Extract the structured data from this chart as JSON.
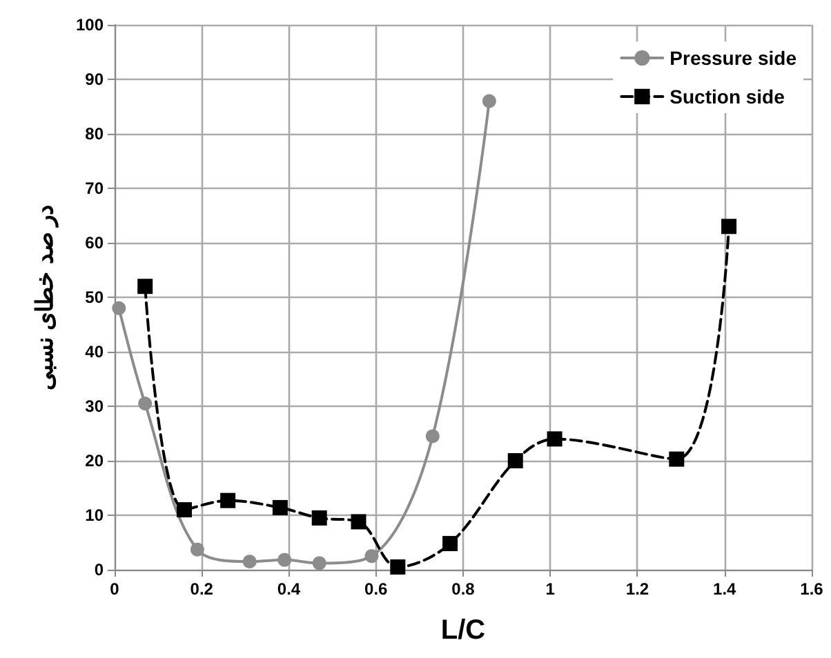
{
  "chart_data": {
    "type": "line",
    "xlabel": "L/C",
    "ylabel": "در صد خطای نسبی",
    "xlim": [
      0,
      1.6
    ],
    "xticks": [
      0,
      0.2,
      0.4,
      0.6,
      0.8,
      1,
      1.2,
      1.4,
      1.6
    ],
    "ylim": [
      0,
      100
    ],
    "yticks": [
      0,
      10,
      20,
      30,
      40,
      50,
      60,
      70,
      80,
      90,
      100
    ],
    "grid": true,
    "legend": "top right",
    "series": [
      {
        "name": "Pressure side",
        "color": "#8c8c8c",
        "marker": "circle",
        "line_style": "solid",
        "x": [
          0.01,
          0.07,
          0.19,
          0.31,
          0.39,
          0.47,
          0.59,
          0.73,
          0.86
        ],
        "values": [
          48,
          30.5,
          3.7,
          1.5,
          1.8,
          1.2,
          2.5,
          24.5,
          86
        ]
      },
      {
        "name": "Suction side",
        "color": "#000000",
        "marker": "square",
        "line_style": "dashed",
        "x": [
          0.07,
          0.16,
          0.26,
          0.38,
          0.47,
          0.56,
          0.65,
          0.77,
          0.92,
          1.01,
          1.29,
          1.41
        ],
        "values": [
          52,
          11,
          12.7,
          11.4,
          9.5,
          8.8,
          0.5,
          4.8,
          20,
          24,
          20.3,
          63
        ]
      }
    ]
  }
}
